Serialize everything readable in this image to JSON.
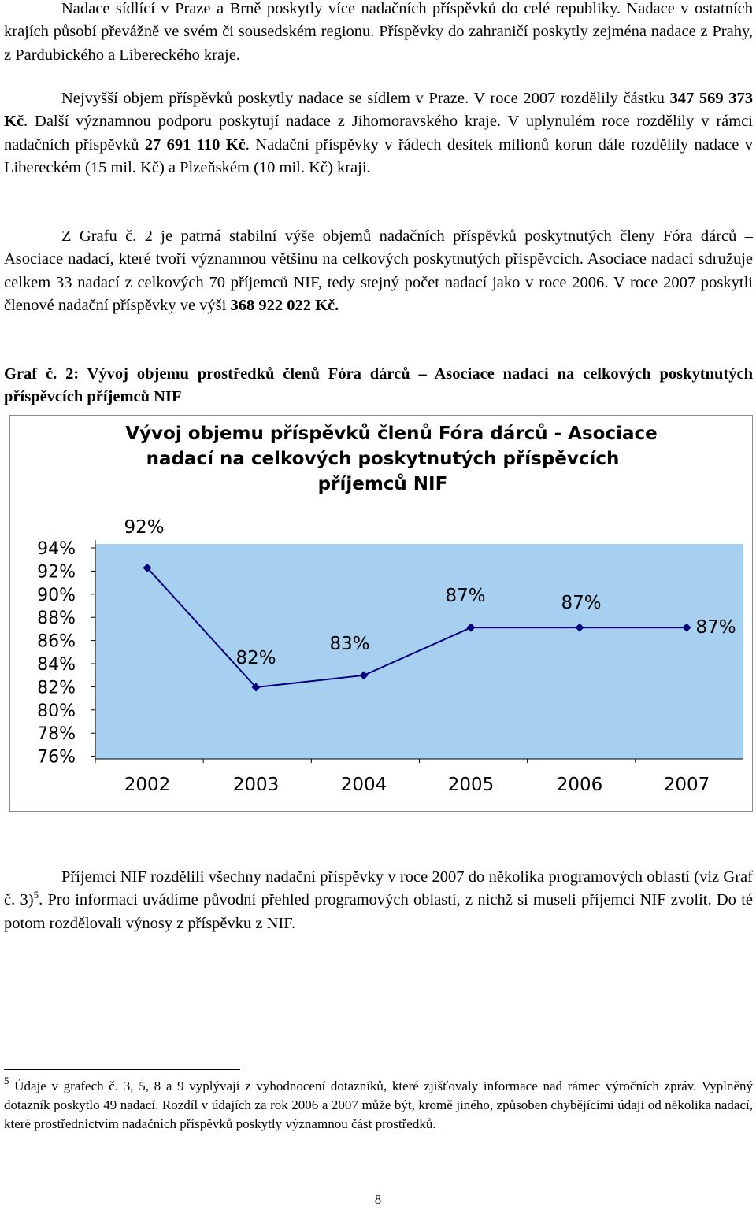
{
  "paragraphs": {
    "p1": {
      "t1": "Nadace sídlící v Praze a Brně poskytly více nadačních příspěvků do celé republiky. Nadace v ostatních krajích působí převážně ve svém či sousedském regionu. Příspěvky do zahraničí poskytly zejména nadace z Prahy, z Pardubického a Libereckého kraje."
    },
    "p2": {
      "t1": "Nejvyšší objem příspěvků poskytly nadace se sídlem v Praze. V roce 2007 rozdělily částku ",
      "b1": "347 569 373 Kč",
      "t2": ". Další významnou podporu poskytují nadace z Jihomoravského kraje. V uplynulém roce rozdělily v rámci nadačních příspěvků ",
      "b2": "27 691 110 Kč",
      "t3": ". Nadační příspěvky v řádech desítek milionů korun dále rozdělily nadace v Libereckém (15 mil. Kč) a Plzeňském (10 mil. Kč) kraji."
    },
    "p3": {
      "t1": "Z Grafu č. 2 je patrná stabilní výše objemů nadačních příspěvků poskytnutých členy Fóra dárců – Asociace nadací, které tvoří významnou většinu na celkových poskytnutých příspěvcích. Asociace nadací sdružuje celkem 33 nadací z celkových 70 příjemců NIF, tedy stejný počet nadací jako v roce 2006. V roce 2007 poskytli členové nadační příspěvky ve výši ",
      "b1": "368 922 022 Kč."
    },
    "caption": "Graf č. 2: Vývoj objemu prostředků členů Fóra dárců – Asociace nadací na celkových poskytnutých příspěvcích příjemců NIF",
    "p4": {
      "t1": "Příjemci NIF rozdělili všechny nadační příspěvky v roce 2007 do několika programových oblastí (viz Graf č. 3)",
      "sup": "5",
      "t2": ". Pro informaci uvádíme původní přehled programových oblastí, z nichž si museli příjemci NIF zvolit. Do té potom rozdělovali výnosy z příspěvku z NIF."
    }
  },
  "chart_data": {
    "type": "line",
    "title_lines": [
      "Vývoj objemu příspěvků členů Fóra dárců - Asociace",
      "nadací na celkových poskytnutých příspěvcích",
      "příjemců NIF"
    ],
    "categories": [
      "2002",
      "2003",
      "2004",
      "2005",
      "2006",
      "2007"
    ],
    "series": [
      {
        "values": [
          92,
          82,
          83,
          87,
          87,
          87
        ],
        "labels": [
          "92%",
          "82%",
          "83%",
          "87%",
          "87%",
          "87%"
        ]
      }
    ],
    "y_ticks": [
      "94%",
      "92%",
      "90%",
      "88%",
      "86%",
      "84%",
      "82%",
      "80%",
      "78%",
      "76%"
    ],
    "ylim": [
      76,
      94
    ],
    "plot_color": "#a7cff0",
    "line_color": "#00007f",
    "grid": false
  },
  "footnote": {
    "mark": "5",
    "text": " Údaje v grafech č. 3, 5, 8 a 9 vyplývají z vyhodnocení dotazníků, které zjišťovaly informace nad rámec výročních zpráv. Vyplněný dotazník poskytlo 49 nadací. Rozdíl v údajích za rok 2006 a 2007 může být, kromě jiného, způsoben chybějícími údaji od několika nadací, které prostřednictvím nadačních příspěvků poskytly významnou část prostředků."
  },
  "page_number": "8"
}
